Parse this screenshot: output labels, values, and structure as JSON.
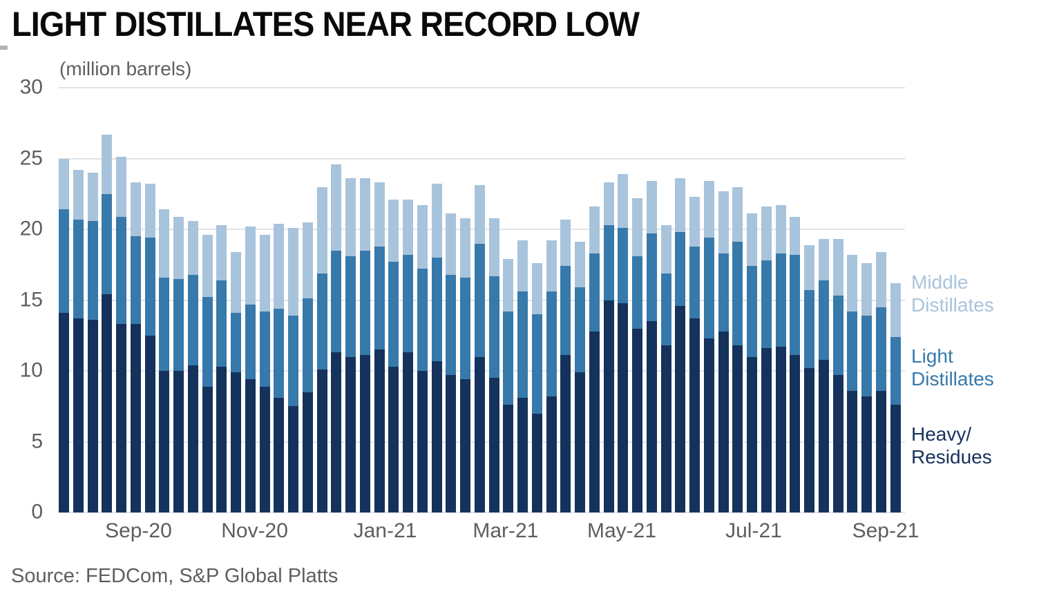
{
  "title": "LIGHT DISTILLATES NEAR RECORD LOW",
  "subtitle": "(million barrels)",
  "source": "Source: FEDCom, S&P Global Platts",
  "colors": {
    "heavy_residues": "#14325c",
    "light_distillates": "#3779ab",
    "middle_distillates": "#a8c4dc",
    "gridline": "#e2e3e4",
    "axis_text": "#5d5e60",
    "title_text": "#0a0a0a"
  },
  "chart_data": {
    "type": "bar",
    "stacked": true,
    "title": "LIGHT DISTILLATES NEAR RECORD LOW",
    "ylabel": "(million barrels)",
    "ylim": [
      0,
      30
    ],
    "yticks": [
      0,
      5,
      10,
      15,
      20,
      25,
      30
    ],
    "grid": true,
    "legend_position": "right",
    "x_axis": {
      "tick_labels": [
        "Sep-20",
        "Nov-20",
        "Jan-21",
        "Mar-21",
        "May-21",
        "Jul-21",
        "Sep-21"
      ],
      "tick_bar_index": [
        5.2,
        13.3,
        22.4,
        30.8,
        38.9,
        48.1,
        57.3
      ],
      "bar_count": 59,
      "frequency": "weekly"
    },
    "series": [
      {
        "name": "Heavy/Residues",
        "color": "#14325c",
        "values": [
          14.1,
          13.7,
          13.6,
          15.4,
          13.3,
          13.3,
          12.5,
          10.0,
          10.0,
          10.4,
          8.9,
          10.3,
          9.9,
          9.4,
          8.9,
          8.1,
          7.5,
          8.5,
          10.1,
          11.3,
          11.0,
          11.1,
          11.5,
          10.3,
          11.3,
          10.0,
          10.7,
          9.7,
          9.4,
          11.0,
          9.5,
          7.6,
          8.1,
          7.0,
          8.2,
          11.1,
          9.9,
          12.8,
          15.0,
          14.8,
          13.0,
          13.5,
          11.8,
          14.6,
          13.7,
          12.3,
          12.8,
          11.8,
          11.0,
          11.6,
          11.7,
          11.1,
          10.2,
          10.8,
          9.7,
          8.6,
          8.2,
          8.6,
          7.6
        ]
      },
      {
        "name": "Light Distillates",
        "color": "#3779ab",
        "values": [
          7.3,
          7.0,
          7.0,
          7.1,
          7.6,
          6.2,
          6.9,
          6.6,
          6.5,
          6.4,
          6.3,
          6.1,
          4.2,
          5.3,
          5.3,
          6.3,
          6.4,
          6.6,
          6.8,
          7.2,
          7.1,
          7.4,
          7.3,
          7.4,
          6.9,
          7.2,
          7.3,
          7.1,
          7.2,
          8.0,
          7.2,
          6.6,
          7.5,
          7.0,
          7.4,
          6.3,
          6.0,
          5.5,
          5.3,
          5.3,
          5.1,
          6.2,
          5.1,
          5.2,
          5.1,
          7.1,
          5.5,
          7.3,
          6.4,
          6.2,
          6.6,
          7.1,
          5.5,
          5.6,
          5.6,
          5.6,
          5.7,
          5.9,
          4.8
        ]
      },
      {
        "name": "Middle Distillates",
        "color": "#a8c4dc",
        "values": [
          3.6,
          3.5,
          3.4,
          4.2,
          4.2,
          3.8,
          3.8,
          4.8,
          4.4,
          3.8,
          4.4,
          3.9,
          4.3,
          5.5,
          5.4,
          6.0,
          6.2,
          5.4,
          6.1,
          6.1,
          5.5,
          5.1,
          4.5,
          4.4,
          3.9,
          4.5,
          5.2,
          4.3,
          4.2,
          4.1,
          4.1,
          3.7,
          3.6,
          3.6,
          3.6,
          3.3,
          3.2,
          3.3,
          3.0,
          3.8,
          4.1,
          3.7,
          3.4,
          3.8,
          3.5,
          4.0,
          4.4,
          3.9,
          3.7,
          3.8,
          3.4,
          2.7,
          3.2,
          2.9,
          4.0,
          4.0,
          3.7,
          3.9,
          3.8
        ]
      }
    ],
    "legend": [
      {
        "line1": "Middle",
        "line2": "Distillates",
        "color": "#a8c4dc"
      },
      {
        "line1": "Light",
        "line2": "Distillates",
        "color": "#3779ab"
      },
      {
        "line1": "Heavy/",
        "line2": "Residues",
        "color": "#14325c"
      }
    ]
  }
}
